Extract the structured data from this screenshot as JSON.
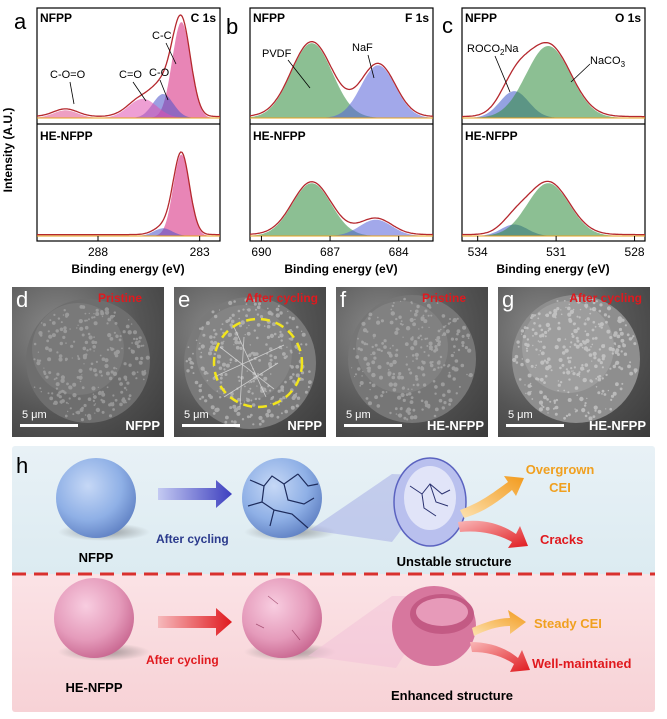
{
  "chart_data": [
    {
      "panel": "a",
      "type": "line",
      "region": "C 1s",
      "ylabel": "Intensity (A.U.)",
      "xlabel": "Binding energy (eV)",
      "xlim": [
        291,
        282
      ],
      "ticks": [
        "288",
        "283"
      ],
      "tick_values": [
        288,
        283
      ],
      "top_label": "NFPP",
      "bottom_label": "HE-NFPP",
      "peaks_top": [
        {
          "name": "C-C",
          "center": 283.9,
          "height": 1.0,
          "width": 0.45,
          "color": "#d6207a"
        },
        {
          "name": "C-O",
          "center": 284.8,
          "height": 0.25,
          "width": 0.5,
          "color": "#4a50c8"
        },
        {
          "name": "C=O",
          "center": 285.8,
          "height": 0.2,
          "width": 0.7,
          "color": "#e050b0"
        },
        {
          "name": "C-O=O",
          "center": 289.6,
          "height": 0.08,
          "width": 0.6,
          "color": "#e05090"
        }
      ],
      "peaks_bottom": [
        {
          "center": 283.9,
          "height": 0.85,
          "width": 0.4,
          "color": "#d6207a"
        },
        {
          "center": 284.8,
          "height": 0.08,
          "width": 0.45,
          "color": "#4a50c8"
        }
      ]
    },
    {
      "panel": "b",
      "type": "line",
      "region": "F 1s",
      "xlabel": "Binding energy (eV)",
      "xlim": [
        690.5,
        682.5
      ],
      "ticks": [
        "690",
        "687",
        "684"
      ],
      "tick_values": [
        690,
        687,
        684
      ],
      "top_label": "NFPP",
      "bottom_label": "HE-NFPP",
      "peaks_top": [
        {
          "name": "PVDF",
          "center": 687.8,
          "height": 0.78,
          "width": 0.9,
          "color": "#2e8a3a"
        },
        {
          "name": "NaF",
          "center": 684.9,
          "height": 0.55,
          "width": 0.75,
          "color": "#5560d8"
        }
      ],
      "peaks_bottom": [
        {
          "center": 687.8,
          "height": 0.55,
          "width": 0.85,
          "color": "#2e8a3a"
        },
        {
          "center": 685.0,
          "height": 0.17,
          "width": 0.7,
          "color": "#5560d8"
        }
      ]
    },
    {
      "panel": "c",
      "type": "line",
      "region": "O 1s",
      "xlabel": "Binding energy (eV)",
      "xlim": [
        534.6,
        527.6
      ],
      "ticks": [
        "534",
        "531",
        "528"
      ],
      "tick_values": [
        534,
        531,
        528
      ],
      "top_label": "NFPP",
      "bottom_label": "HE-NFPP",
      "peaks_top": [
        {
          "name": "ROCO₂Na",
          "center": 532.6,
          "height": 0.28,
          "width": 0.55,
          "color": "#3d55c8"
        },
        {
          "name": "NaCO₃",
          "center": 531.3,
          "height": 0.75,
          "width": 0.85,
          "color": "#2e8a3a"
        }
      ],
      "peaks_bottom": [
        {
          "center": 532.6,
          "height": 0.12,
          "width": 0.5,
          "color": "#3d55c8"
        },
        {
          "center": 531.3,
          "height": 0.55,
          "width": 0.8,
          "color": "#2e8a3a"
        }
      ]
    }
  ],
  "xps_labels": {
    "a": "a",
    "b": "b",
    "c": "c",
    "region_a": "C 1s",
    "region_b": "F 1s",
    "region_c": "O 1s",
    "top": "NFPP",
    "bottom": "HE-NFPP",
    "ylabel": "Intensity (A.U.)",
    "xlabel": "Binding energy (eV)",
    "peak_coo": "C-O=O",
    "peak_c_eq_o": "C=O",
    "peak_co": "C-O",
    "peak_cc": "C-C",
    "peak_pvdf": "PVDF",
    "peak_naf": "NaF",
    "peak_roco": "ROCO",
    "peak_roco_sub": "2",
    "peak_roco_tail": "Na",
    "peak_naco": "NaCO",
    "peak_naco_sub": "3"
  },
  "sem": [
    {
      "letter": "d",
      "state": "Pristine",
      "scale": "5 μm",
      "sample": "NFPP"
    },
    {
      "letter": "e",
      "state": "After cycling",
      "scale": "5 μm",
      "sample": "NFPP"
    },
    {
      "letter": "f",
      "state": "Pristine",
      "scale": "5 μm",
      "sample": "HE-NFPP"
    },
    {
      "letter": "g",
      "state": "After cycling",
      "scale": "5 μm",
      "sample": "HE-NFPP"
    }
  ],
  "schematic": {
    "letter": "h",
    "top": {
      "sample": "NFPP",
      "arrow_label": "After cycling",
      "structure": "Unstable structure",
      "tag1_line1": "Overgrown",
      "tag1_line2": "CEI",
      "tag2": "Cracks"
    },
    "bottom": {
      "sample": "HE-NFPP",
      "arrow_label": "After cycling",
      "structure": "Enhanced structure",
      "tag1": "Steady CEI",
      "tag2": "Well-maintained"
    },
    "colors": {
      "nfpp_sphere": "#8fb0e6",
      "he_sphere": "#e59bbb",
      "orange": "#f0a020",
      "red": "#e0191e",
      "blue_text": "#2a3a8c",
      "divider": "#d9302e"
    }
  }
}
